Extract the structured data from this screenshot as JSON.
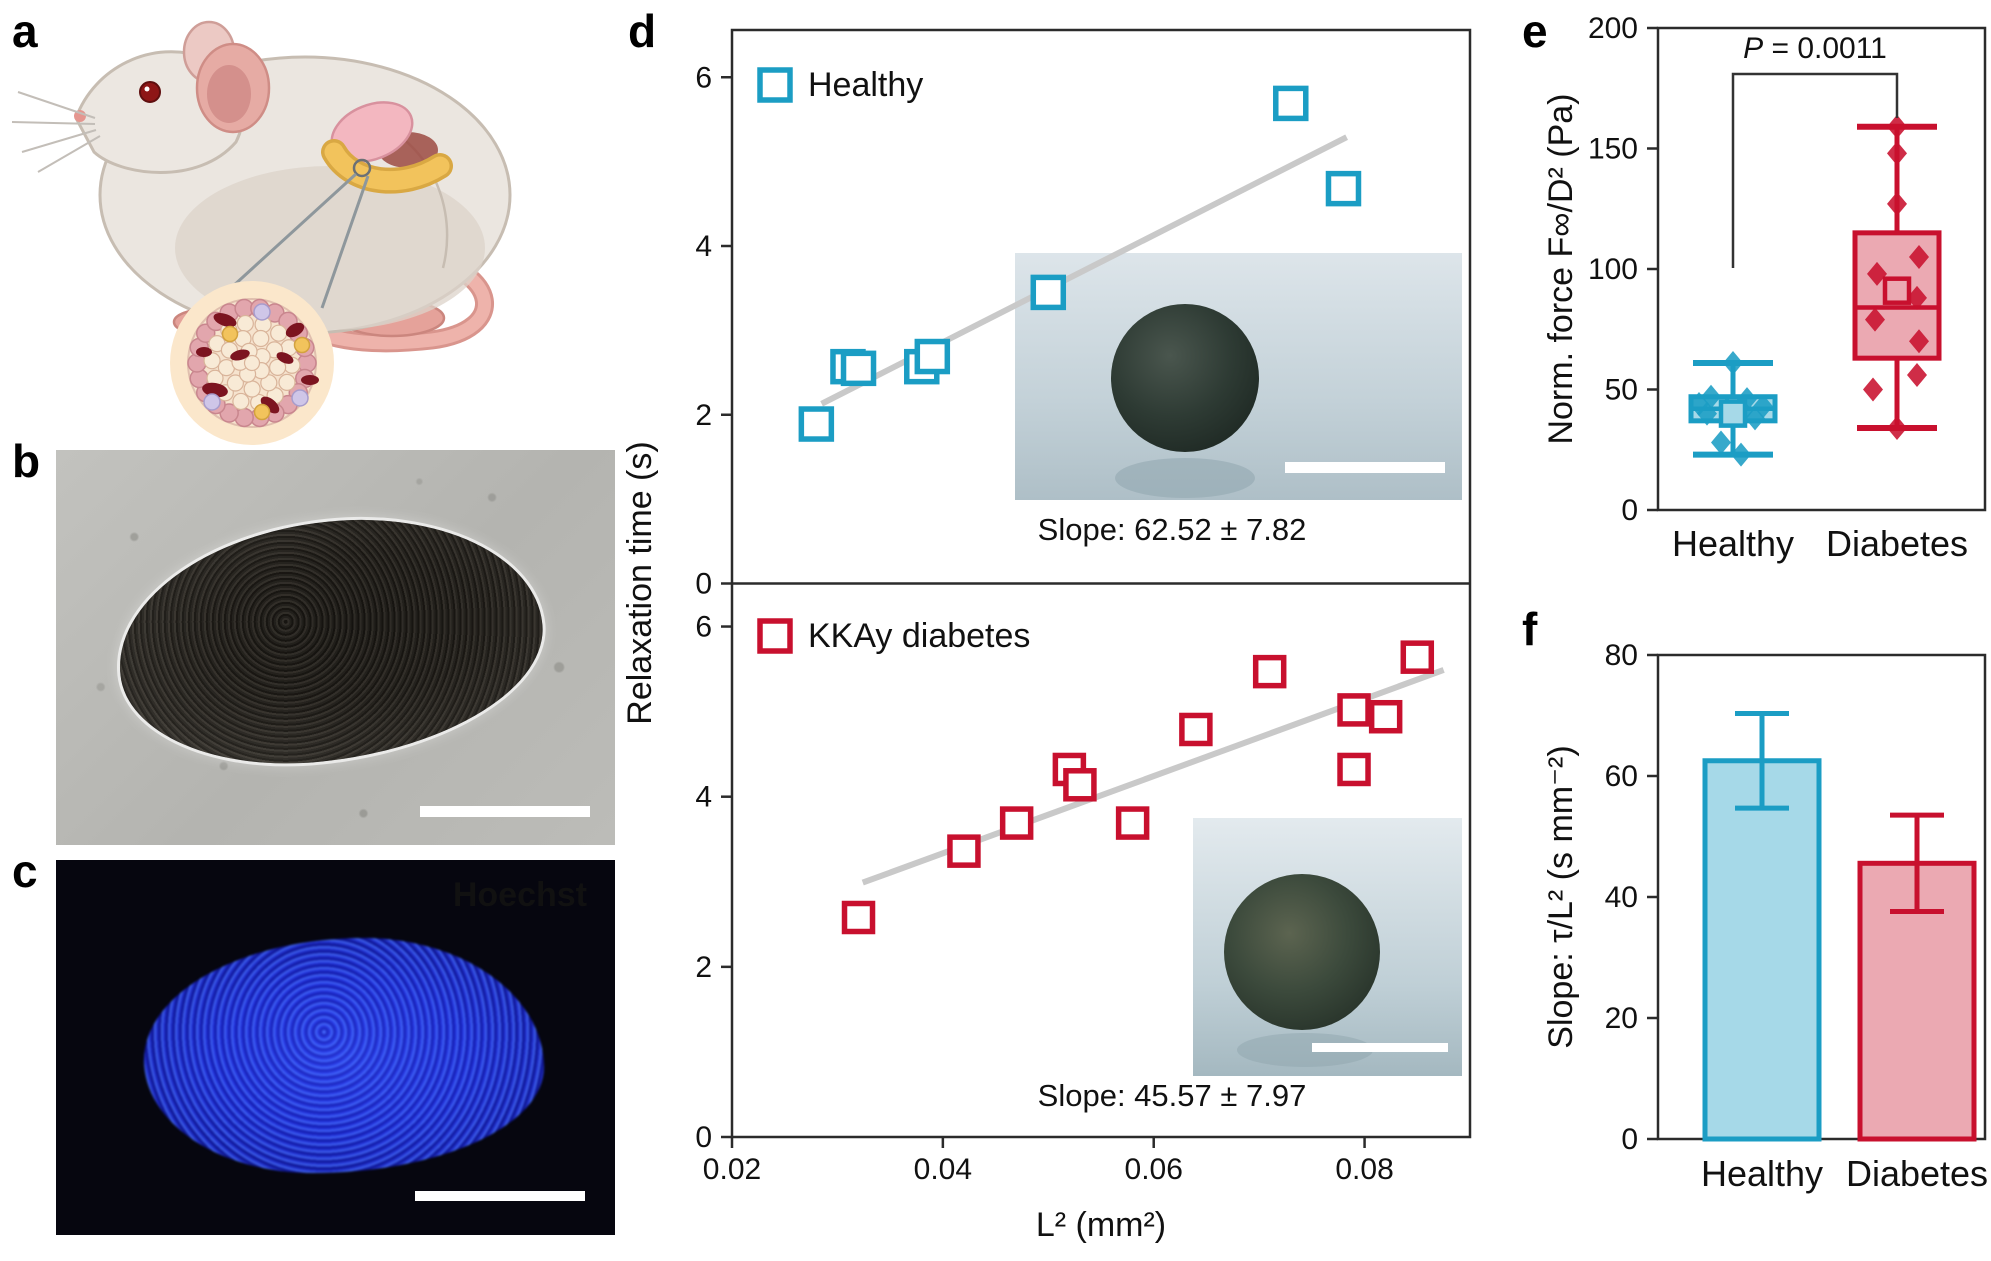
{
  "panels": {
    "a": {
      "letter": "a"
    },
    "b": {
      "letter": "b"
    },
    "c": {
      "letter": "c",
      "stain_label": "Hoechst"
    },
    "d": {
      "letter": "d"
    },
    "e": {
      "letter": "e"
    },
    "f": {
      "letter": "f"
    }
  },
  "colors": {
    "healthy": "#1b9dc4",
    "healthy_fill": "#a6d9e8",
    "diabetes": "#c8102e",
    "diabetes_fill": "#eba9b2",
    "fit_line": "#c9c9c9",
    "hoechst_text": "#2a2aee",
    "axis": "#2b2b2b"
  },
  "chart_data": [
    {
      "type": "scatter",
      "panel": "d",
      "xlabel": "L² (mm²)",
      "ylabel": "Relaxation time (s)",
      "xlim": [
        0.02,
        0.09
      ],
      "xticks": [
        0.02,
        0.04,
        0.06,
        0.08
      ],
      "xtick_labels": [
        "0.02",
        "0.04",
        "0.06",
        "0.08"
      ],
      "subplots": [
        {
          "name": "Healthy",
          "color": "#1b9dc4",
          "ylim": [
            0,
            6.56
          ],
          "yticks": [
            0,
            2,
            4,
            6
          ],
          "points": [
            [
              0.028,
              1.89
            ],
            [
              0.031,
              2.57
            ],
            [
              0.032,
              2.55
            ],
            [
              0.038,
              2.57
            ],
            [
              0.039,
              2.69
            ],
            [
              0.05,
              3.45
            ],
            [
              0.073,
              5.69
            ],
            [
              0.078,
              4.68
            ]
          ],
          "fit": {
            "x1": 0.0285,
            "y1": 2.13,
            "x2": 0.0783,
            "y2": 5.29
          },
          "slope_label": "Slope:  62.52 ± 7.82"
        },
        {
          "name": "KKAy diabetes",
          "color": "#c8102e",
          "ylim": [
            0,
            6.5
          ],
          "yticks": [
            0,
            2,
            4,
            6
          ],
          "points": [
            [
              0.032,
              2.58
            ],
            [
              0.042,
              3.36
            ],
            [
              0.047,
              3.69
            ],
            [
              0.052,
              4.32
            ],
            [
              0.053,
              4.14
            ],
            [
              0.058,
              3.69
            ],
            [
              0.064,
              4.79
            ],
            [
              0.071,
              5.47
            ],
            [
              0.079,
              5.02
            ],
            [
              0.079,
              4.32
            ],
            [
              0.082,
              4.94
            ],
            [
              0.085,
              5.64
            ]
          ],
          "fit": {
            "x1": 0.0324,
            "y1": 2.99,
            "x2": 0.0875,
            "y2": 5.49
          },
          "slope_label": "Slope:  45.57 ± 7.97"
        }
      ]
    },
    {
      "type": "box",
      "panel": "e",
      "ylabel": "Norm. force F∞/D² (Pa)",
      "ylim": [
        0,
        200
      ],
      "yticks": [
        0,
        50,
        100,
        150,
        200
      ],
      "annotation": "P = 0.0011",
      "categories": [
        "Healthy",
        "Diabetes"
      ],
      "series": [
        {
          "name": "Healthy",
          "color": "#1b9dc4",
          "fill": "#a6d9e8",
          "whisker_low": 23,
          "q1": 37,
          "median": 42,
          "q3": 47,
          "whisker_high": 61,
          "mean": 40,
          "points": [
            61,
            47,
            46,
            44,
            43,
            42,
            41,
            40,
            38,
            28,
            23
          ]
        },
        {
          "name": "Diabetes",
          "color": "#c8102e",
          "fill": "#eba9b2",
          "whisker_low": 34,
          "q1": 63,
          "median": 84,
          "q3": 115,
          "whisker_high": 159,
          "mean": 91,
          "points": [
            159,
            148,
            127,
            105,
            98,
            88,
            79,
            70,
            56,
            50,
            34
          ]
        }
      ]
    },
    {
      "type": "bar",
      "panel": "f",
      "ylabel": "Slope: τ/L² (s mm⁻²)",
      "ylim": [
        0,
        80
      ],
      "yticks": [
        0,
        20,
        40,
        60,
        80
      ],
      "categories": [
        "Healthy",
        "Diabetes"
      ],
      "values": [
        62.52,
        45.57
      ],
      "errors": [
        7.82,
        7.97
      ],
      "colors": [
        "#1b9dc4",
        "#c8102e"
      ],
      "fills": [
        "#a6d9e8",
        "#eba9b2"
      ]
    }
  ]
}
